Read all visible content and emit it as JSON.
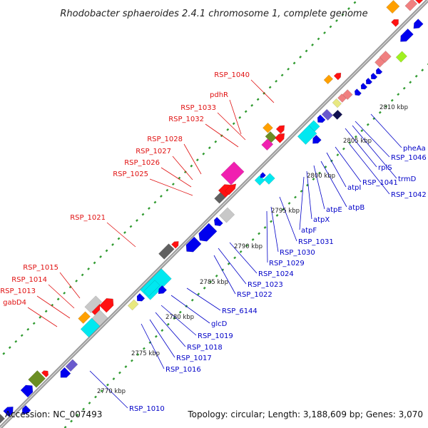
{
  "map": {
    "title": "Rhodobacter sphaeroides 2.4.1 chromosome 1, complete genome",
    "accession": "Accession: NC_007493",
    "summary": "Topology: circular; Length: 3,188,609 bp; Genes: 3,070"
  },
  "colors": {
    "red_label": "#e01010",
    "blue_label": "#0000c8",
    "backbone": "#8c8c8c",
    "tick_green": "#2f9a2f",
    "gene_blue": "#0000ee",
    "gene_red": "#ff1111",
    "gene_cyan": "#00e8f0",
    "gene_gray": "#c8c8c8",
    "gene_pink": "#f020b0",
    "gene_olive": "#6b8e23",
    "gene_orange": "#ffa000",
    "gene_salmon": "#f08080",
    "gene_yellow": "#e8e880",
    "gene_green": "#a0f020",
    "gene_navy": "#101050",
    "gene_purple": "#6a5acd",
    "gene_darkgray": "#606060"
  },
  "scale_labels": [
    "2770 kbp",
    "2775 kbp",
    "2780 kbp",
    "2785 kbp",
    "2790 kbp",
    "2795 kbp",
    "2800 kbp",
    "2805 kbp",
    "2810 kbp"
  ],
  "labels_top": [
    "RSP_1040",
    "pdhR",
    "RSP_1033",
    "RSP_1032",
    "RSP_1028",
    "RSP_1027",
    "RSP_1026",
    "RSP_1025",
    "RSP_1021",
    "RSP_1015",
    "RSP_1014",
    "RSP_1013",
    "gabD4"
  ],
  "labels_bottom": [
    "pheAa",
    "RSP_1046",
    "rplS",
    "trmD",
    "RSP_1042",
    "RSP_1041",
    "atpI",
    "atpB",
    "atpE",
    "atpX",
    "atpF",
    "RSP_1031",
    "RSP_1030",
    "RSP_1029",
    "RSP_1024",
    "RSP_1023",
    "RSP_1022",
    "RSP_6144",
    "glcD",
    "RSP_1019",
    "RSP_1018",
    "RSP_1017",
    "RSP_1016",
    "RSP_1010"
  ]
}
